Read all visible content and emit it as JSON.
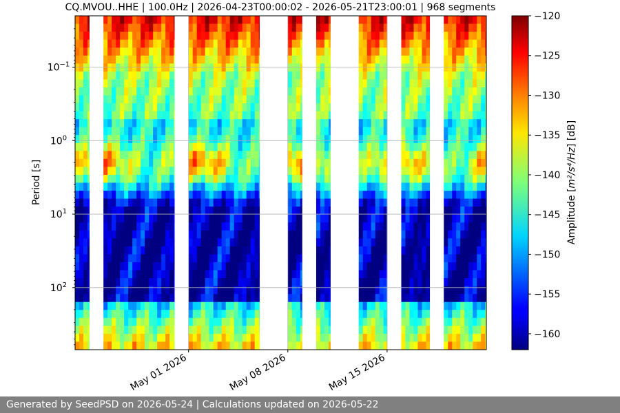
{
  "chart_data": {
    "type": "heatmap",
    "title": "CQ.MVOU..HHE | 100.0Hz | 2026-04-23T00:00:02 - 2026-05-21T23:00:01 | 968 segments",
    "x_axis": {
      "type": "date",
      "range": [
        "2026-04-23",
        "2026-05-22"
      ],
      "ticks": [
        {
          "value": "2026-05-01",
          "label": "May 01 2026"
        },
        {
          "value": "2026-05-08",
          "label": "May 08 2026"
        },
        {
          "value": "2026-05-15",
          "label": "May 15 2026"
        }
      ]
    },
    "y_axis": {
      "label": "Period [s]",
      "scale": "log",
      "inverted": true,
      "range": [
        0.02,
        700
      ],
      "ticks": [
        {
          "value": 0.1,
          "base": "10",
          "exp": "−1"
        },
        {
          "value": 1,
          "base": "10",
          "exp": "0"
        },
        {
          "value": 10,
          "base": "10",
          "exp": "1"
        },
        {
          "value": 100,
          "base": "10",
          "exp": "2"
        }
      ],
      "grid": true
    },
    "colorbar": {
      "label_prefix": "Amplitude [",
      "label_unit": "m²/s⁴/Hz",
      "label_suffix": "] [dB]",
      "range": [
        -162,
        -120
      ],
      "colormap": "jet",
      "ticks": [
        -120,
        -125,
        -130,
        -135,
        -140,
        -145,
        -150,
        -155,
        -160
      ]
    },
    "data_coverage": [
      {
        "start": "2026-04-23",
        "end": "2026-04-24"
      },
      {
        "start": "2026-04-25",
        "end": "2026-04-30"
      },
      {
        "start": "2026-05-01",
        "end": "2026-05-06"
      },
      {
        "start": "2026-05-08",
        "end": "2026-05-09"
      },
      {
        "start": "2026-05-10",
        "end": "2026-05-11"
      },
      {
        "start": "2026-05-13",
        "end": "2026-05-15"
      },
      {
        "start": "2026-05-16",
        "end": "2026-05-18"
      },
      {
        "start": "2026-05-19",
        "end": "2026-05-22"
      }
    ]
  },
  "footer": {
    "text": "Generated by SeedPSD on 2026-05-24 | Calculations updated on 2026-05-22"
  }
}
